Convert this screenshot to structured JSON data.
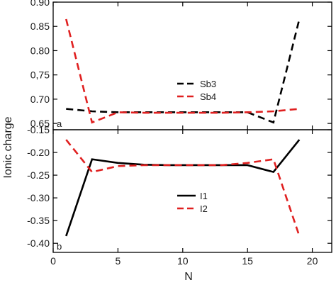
{
  "chart_data": {
    "type": "line",
    "ylabel": "Ionic charge",
    "xlabel": "N",
    "xlim": [
      0,
      21.5
    ],
    "xticks": [
      {
        "value": 0,
        "label": "0"
      },
      {
        "value": 5,
        "label": "5"
      },
      {
        "value": 10,
        "label": "10"
      },
      {
        "value": 15,
        "label": "15"
      },
      {
        "value": 20,
        "label": "20"
      }
    ],
    "grid": false,
    "panels": [
      {
        "tag": "a",
        "ylim": [
          0.637,
          0.9
        ],
        "yticks": [
          {
            "value": 0.9,
            "label": "0.90"
          },
          {
            "value": 0.85,
            "label": "0.85"
          },
          {
            "value": 0.8,
            "label": "0.80"
          },
          {
            "value": 0.75,
            "label": "0,75"
          },
          {
            "value": 0.7,
            "label": "0.70"
          },
          {
            "value": 0.65,
            "label": "0.65"
          }
        ],
        "legend": {
          "placement": "center"
        },
        "series": [
          {
            "name": "Sb3",
            "color": "#000000",
            "dashed": true,
            "x": [
              1,
              3,
              5,
              7,
              9,
              11,
              13,
              15,
              17,
              19
            ],
            "y": [
              0.68,
              0.675,
              0.673,
              0.673,
              0.673,
              0.673,
              0.673,
              0.673,
              0.652,
              0.865
            ]
          },
          {
            "name": "Sb4",
            "color": "#e02020",
            "dashed": true,
            "x": [
              1,
              3,
              5,
              7,
              9,
              11,
              13,
              15,
              17,
              19
            ],
            "y": [
              0.865,
              0.652,
              0.673,
              0.672,
              0.672,
              0.672,
              0.672,
              0.673,
              0.675,
              0.68
            ]
          }
        ]
      },
      {
        "tag": "b",
        "ylim": [
          -0.42,
          -0.15
        ],
        "yticks": [
          {
            "value": -0.15,
            "label": "-0.15"
          },
          {
            "value": -0.2,
            "label": "-0.20"
          },
          {
            "value": -0.25,
            "label": "-0.25"
          },
          {
            "value": -0.3,
            "label": "-0.30"
          },
          {
            "value": -0.35,
            "label": "-0.35"
          },
          {
            "value": -0.4,
            "label": "-0.40"
          }
        ],
        "legend": {
          "placement": "center"
        },
        "series": [
          {
            "name": "I1",
            "color": "#000000",
            "dashed": false,
            "x": [
              1,
              3,
              5,
              7,
              9,
              11,
              13,
              15,
              17,
              19
            ],
            "y": [
              -0.384,
              -0.215,
              -0.223,
              -0.227,
              -0.228,
              -0.228,
              -0.228,
              -0.228,
              -0.243,
              -0.172
            ]
          },
          {
            "name": "I2",
            "color": "#e02020",
            "dashed": true,
            "x": [
              1,
              3,
              5,
              7,
              9,
              11,
              13,
              15,
              17,
              19
            ],
            "y": [
              -0.172,
              -0.243,
              -0.23,
              -0.228,
              -0.228,
              -0.228,
              -0.228,
              -0.223,
              -0.215,
              -0.384
            ]
          }
        ]
      }
    ]
  }
}
